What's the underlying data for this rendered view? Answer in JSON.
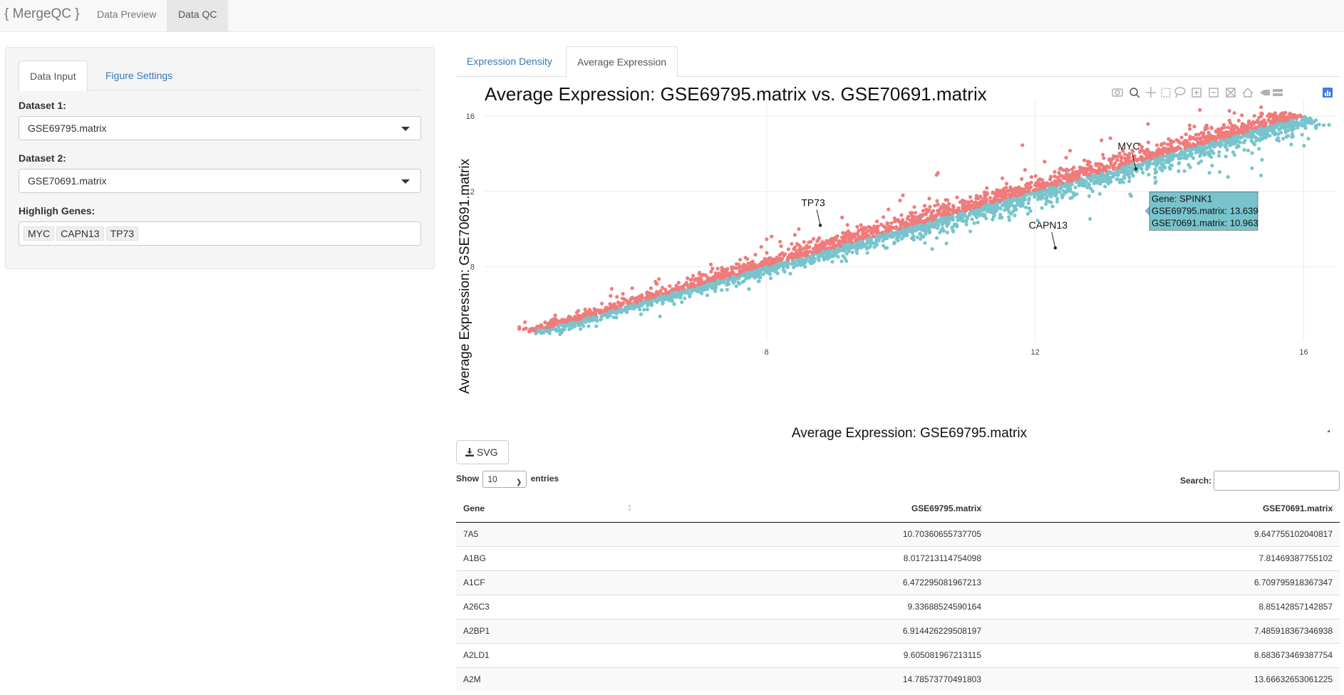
{
  "navbar": {
    "brand": "{ MergeQC }",
    "links": [
      "Data Preview",
      "Data QC"
    ],
    "active": "Data QC"
  },
  "sidebar": {
    "tabs": [
      "Data Input",
      "Figure Settings"
    ],
    "active_tab": "Data Input",
    "dataset1_label": "Dataset 1:",
    "dataset1_value": "GSE69795.matrix",
    "dataset2_label": "Dataset 2:",
    "dataset2_value": "GSE70691.matrix",
    "genes_label": "Highligh Genes:",
    "genes": [
      "MYC",
      "CAPN13",
      "TP73"
    ]
  },
  "main": {
    "tabs": [
      "Expression Density",
      "Average Expression"
    ],
    "active_tab": "Average Expression",
    "svg_button": "SVG"
  },
  "modebar_icons": [
    "camera-icon",
    "zoom-icon",
    "pan-icon",
    "box-select-icon",
    "lasso-icon",
    "zoom-in-icon",
    "zoom-out-icon",
    "autoscale-icon",
    "reset-axes-icon",
    "spike-lines-icon",
    "compare-hover-icon",
    "plotly-logo-icon"
  ],
  "chart_data": {
    "type": "scatter",
    "title": "Average Expression: GSE69795.matrix vs. GSE70691.matrix",
    "xlabel": "Average Expression: GSE69795.matrix",
    "ylabel": "Average Expression: GSE70691.matrix",
    "x_ticks": [
      8,
      12,
      16
    ],
    "y_ticks": [
      8,
      12,
      16
    ],
    "xlim": [
      3.8,
      16.6
    ],
    "ylim": [
      4.2,
      16.5
    ],
    "grid": true,
    "colors": {
      "above": "#f07b7b",
      "below": "#79c4cc"
    },
    "series": [
      {
        "values_range": [
          [
            4.5,
            4.5
          ],
          [
            16,
            16
          ]
        ]
      }
    ],
    "annotations": [
      {
        "label": "MYC",
        "x": 13.5,
        "y": 13.2
      },
      {
        "label": "TP73",
        "x": 8.8,
        "y": 10.2
      },
      {
        "label": "CAPN13",
        "x": 12.3,
        "y": 9.0
      }
    ],
    "hover": {
      "x": 13.639,
      "y": 10.963,
      "lines": [
        "Gene: SPINK1",
        "GSE69795.matrix: 13.639",
        "GSE70691.matrix: 10.963"
      ]
    }
  },
  "table": {
    "show_label": "Show",
    "entries_value": "10",
    "entries_label": "entries",
    "search_label": "Search:",
    "columns": [
      "Gene",
      "GSE69795.matrix",
      "GSE70691.matrix"
    ],
    "rows": [
      [
        "7A5",
        "10.70360655737705",
        "9.647755102040817"
      ],
      [
        "A1BG",
        "8.017213114754098",
        "7.81469387755102"
      ],
      [
        "A1CF",
        "6.472295081967213",
        "6.709795918367347"
      ],
      [
        "A26C3",
        "9.33688524590164",
        "8.85142857142857"
      ],
      [
        "A2BP1",
        "6.914426229508197",
        "7.485918367346938"
      ],
      [
        "A2LD1",
        "9.605081967213115",
        "8.683673469387754"
      ],
      [
        "A2M",
        "14.78573770491803",
        "13.66632653061225"
      ]
    ]
  }
}
